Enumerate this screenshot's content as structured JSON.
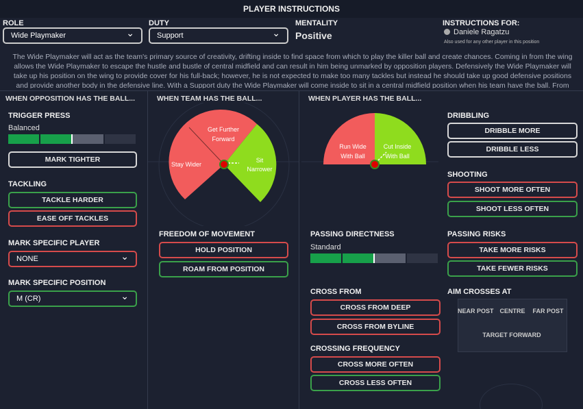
{
  "header": {
    "title": "PLAYER INSTRUCTIONS"
  },
  "role": {
    "label": "ROLE",
    "value": "Wide Playmaker"
  },
  "duty": {
    "label": "DUTY",
    "value": "Support"
  },
  "mentality": {
    "label": "MENTALITY",
    "value": "Positive"
  },
  "instructions_for": {
    "label": "INSTRUCTIONS FOR:",
    "player": "Daniele Ragatzu",
    "note": "Also used for any other player in this position"
  },
  "description": "The Wide Playmaker will act as the team's primary source of creativity, drifting inside to find space from which to play the killer ball and create chances. Coming in from the wing allows the Wide Playmaker to escape the hustle and bustle of central midfield and can result in him being unmarked by opposition players. Defensively the Wide Playmaker will take up his position on the wing to provide cover for his full-back; however, he is not expected to make too many tackles but instead he should take up good defensive positions and provide another body in the defensive line. With a Support duty the Wide Playmaker will come inside to sit in a central midfield position when his team have the ball. From here he will act as the main creator for his side.",
  "columns": [
    "WHEN OPPOSITION HAS THE BALL...",
    "WHEN TEAM HAS THE BALL...",
    "WHEN PLAYER HAS THE BALL..."
  ],
  "trigger_press": {
    "label": "TRIGGER PRESS",
    "value": "Balanced",
    "button": "MARK TIGHTER"
  },
  "tackling": {
    "label": "TACKLING",
    "buttons": [
      "TACKLE HARDER",
      "EASE OFF TACKLES"
    ]
  },
  "mark_player": {
    "label": "MARK SPECIFIC PLAYER",
    "value": "NONE"
  },
  "mark_position": {
    "label": "MARK SPECIFIC POSITION",
    "value": "M (CR)"
  },
  "team_ball": {
    "forward": "Get Further Forward",
    "wider": "Stay Wider",
    "narrower": "Sit Narrower"
  },
  "freedom": {
    "label": "FREEDOM OF MOVEMENT",
    "buttons": [
      "HOLD POSITION",
      "ROAM FROM POSITION"
    ]
  },
  "player_ball": {
    "wide": "Run Wide With Ball",
    "inside": "Cut Inside With Ball"
  },
  "passing_directness": {
    "label": "PASSING DIRECTNESS",
    "value": "Standard"
  },
  "cross_from": {
    "label": "CROSS FROM",
    "buttons": [
      "CROSS FROM DEEP",
      "CROSS FROM BYLINE"
    ]
  },
  "crossing_frequency": {
    "label": "CROSSING FREQUENCY",
    "buttons": [
      "CROSS MORE OFTEN",
      "CROSS LESS OFTEN"
    ]
  },
  "dribbling": {
    "label": "DRIBBLING",
    "buttons": [
      "DRIBBLE MORE",
      "DRIBBLE LESS"
    ]
  },
  "shooting": {
    "label": "SHOOTING",
    "buttons": [
      "SHOOT MORE OFTEN",
      "SHOOT LESS OFTEN"
    ]
  },
  "passing_risks": {
    "label": "PASSING RISKS",
    "buttons": [
      "TAKE MORE RISKS",
      "TAKE FEWER RISKS"
    ]
  },
  "aim_crosses": {
    "label": "AIM CROSSES AT",
    "targets": [
      "NEAR POST",
      "CENTRE",
      "FAR POST",
      "TARGET FORWARD"
    ]
  }
}
